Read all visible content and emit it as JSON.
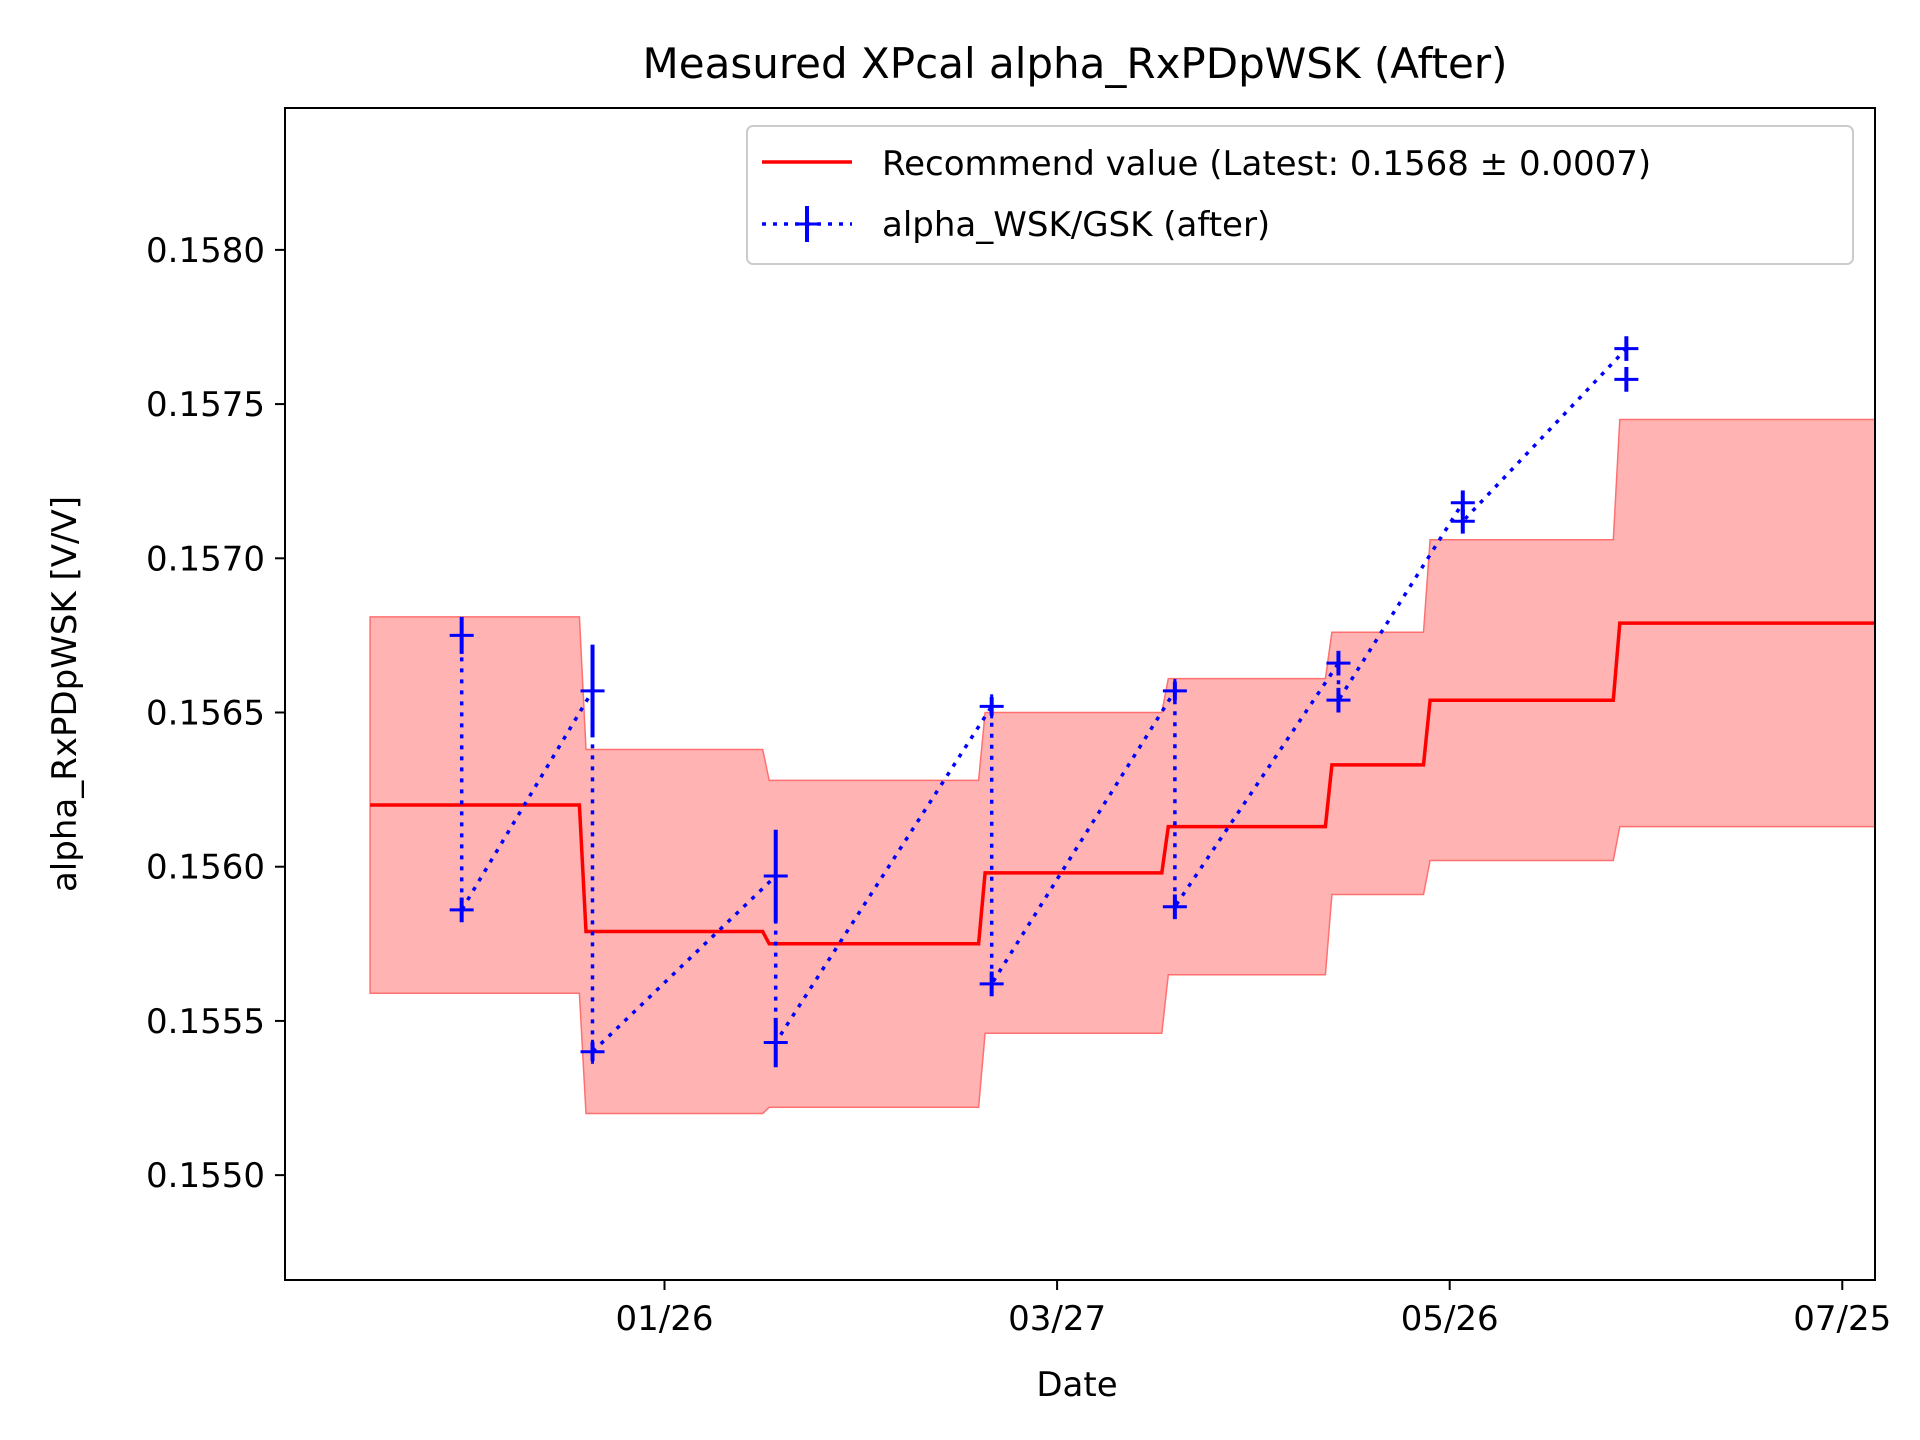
{
  "chart_data": {
    "type": "line",
    "title": "Measured XPcal alpha_RxPDpWSK (After)",
    "xlabel": "Date",
    "ylabel": "alpha_RxPDpWSK [V/V]",
    "x_ticks": [
      "01/26",
      "03/27",
      "05/26",
      "07/25"
    ],
    "y_ticks": [
      "0.1550",
      "0.1555",
      "0.1560",
      "0.1565",
      "0.1570",
      "0.1575",
      "0.1580"
    ],
    "legend_position": "upper-right",
    "grid": false,
    "colors": {
      "recommend_line": "#ff0000",
      "band_fill": "#ff9999",
      "band_edge": "#ff7070",
      "measurement": "#0000ff"
    },
    "series": [
      {
        "name": "Recommend value (Latest: 0.1568 ± 0.0007)",
        "style": "solid-step-line-with-uncertainty-band",
        "points": [
          {
            "x": "2024-12-12",
            "y": 0.1562,
            "lo": 0.15559,
            "hi": 0.15681
          },
          {
            "x": "2025-01-13",
            "y": 0.1562,
            "lo": 0.15559,
            "hi": 0.15681
          },
          {
            "x": "2025-01-14",
            "y": 0.15579,
            "lo": 0.1552,
            "hi": 0.15638
          },
          {
            "x": "2025-02-10",
            "y": 0.15579,
            "lo": 0.1552,
            "hi": 0.15638
          },
          {
            "x": "2025-02-11",
            "y": 0.15575,
            "lo": 0.15522,
            "hi": 0.15628
          },
          {
            "x": "2025-03-15",
            "y": 0.15575,
            "lo": 0.15522,
            "hi": 0.15628
          },
          {
            "x": "2025-03-16",
            "y": 0.15598,
            "lo": 0.15546,
            "hi": 0.1565
          },
          {
            "x": "2025-04-12",
            "y": 0.15598,
            "lo": 0.15546,
            "hi": 0.1565
          },
          {
            "x": "2025-04-13",
            "y": 0.15613,
            "lo": 0.15565,
            "hi": 0.15661
          },
          {
            "x": "2025-05-07",
            "y": 0.15613,
            "lo": 0.15565,
            "hi": 0.15661
          },
          {
            "x": "2025-05-08",
            "y": 0.15633,
            "lo": 0.15591,
            "hi": 0.15676
          },
          {
            "x": "2025-05-22",
            "y": 0.15633,
            "lo": 0.15591,
            "hi": 0.15676
          },
          {
            "x": "2025-05-23",
            "y": 0.15654,
            "lo": 0.15602,
            "hi": 0.15706
          },
          {
            "x": "2025-06-20",
            "y": 0.15654,
            "lo": 0.15602,
            "hi": 0.15706
          },
          {
            "x": "2025-06-21",
            "y": 0.15679,
            "lo": 0.15613,
            "hi": 0.15745
          },
          {
            "x": "2025-07-30",
            "y": 0.15679,
            "lo": 0.15613,
            "hi": 0.15745
          }
        ]
      },
      {
        "name": "alpha_WSK/GSK (after)",
        "style": "dotted-line-with-plus-markers-and-errorbars",
        "points": [
          {
            "x": "2024-12-26",
            "y": 0.15675,
            "err": 6e-05
          },
          {
            "x": "2024-12-26",
            "y": 0.15586,
            "err": 4e-05
          },
          {
            "x": "2025-01-15",
            "y": 0.15657,
            "err": 0.00015
          },
          {
            "x": "2025-01-15",
            "y": 0.1554,
            "err": 3e-05
          },
          {
            "x": "2025-02-12",
            "y": 0.15597,
            "err": 0.00015
          },
          {
            "x": "2025-02-12",
            "y": 0.15543,
            "err": 8e-05
          },
          {
            "x": "2025-03-17",
            "y": 0.15652,
            "err": 3e-05
          },
          {
            "x": "2025-03-17",
            "y": 0.15562,
            "err": 4e-05
          },
          {
            "x": "2025-04-14",
            "y": 0.15657,
            "err": 3e-05
          },
          {
            "x": "2025-04-14",
            "y": 0.15587,
            "err": 4e-05
          },
          {
            "x": "2025-05-09",
            "y": 0.15666,
            "err": 4e-05
          },
          {
            "x": "2025-05-09",
            "y": 0.15654,
            "err": 4e-05
          },
          {
            "x": "2025-05-28",
            "y": 0.15718,
            "err": 4e-05
          },
          {
            "x": "2025-05-28",
            "y": 0.15712,
            "err": 4e-05
          },
          {
            "x": "2025-06-22",
            "y": 0.15768,
            "err": 4e-05
          },
          {
            "x": "2025-06-22",
            "y": 0.15758,
            "err": 4e-05
          }
        ]
      }
    ]
  }
}
